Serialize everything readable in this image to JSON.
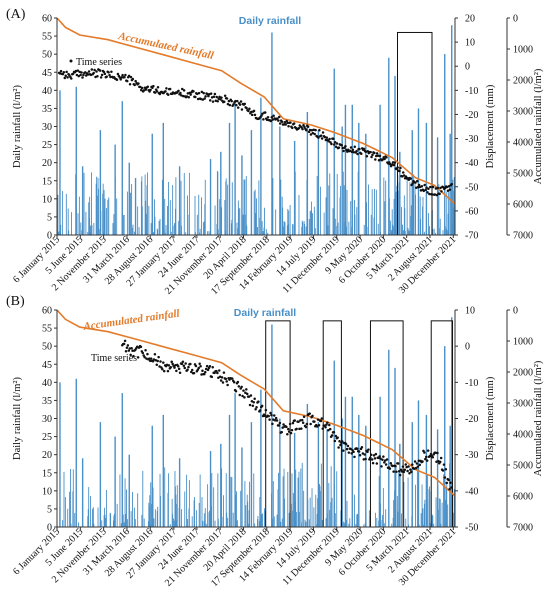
{
  "colors": {
    "rain": "#4a90c8",
    "accumulated": "#e37b2a",
    "points": "#111111",
    "axis": "#333333"
  },
  "chart_data": [
    {
      "type": "bar",
      "panel": "(A)",
      "annotations": {
        "rain": "Daily rainfall",
        "accumulated": "Accumulated rainfall",
        "series": "Time series"
      },
      "ylabel_left": "Daily rainfall (l/m²)",
      "ylabel_right1": "Displacement (mm)",
      "ylabel_right2": "Accumulated rainfall (l/m²)",
      "ylim_left": [
        0,
        60
      ],
      "ylim_right1": [
        -70,
        20
      ],
      "ylim_right2": [
        7000,
        0
      ],
      "left_ticks": [
        0,
        5,
        10,
        15,
        20,
        25,
        30,
        35,
        40,
        45,
        50,
        55,
        60
      ],
      "right1_ticks": [
        -70,
        -60,
        -50,
        -40,
        -30,
        -20,
        -10,
        0,
        10,
        20
      ],
      "right2_ticks": [
        0,
        1000,
        2000,
        3000,
        4000,
        5000,
        6000,
        7000
      ],
      "x_start": "2015-01-06",
      "x_end": "2022-01-10",
      "x_ticks": [
        "6 January 2015",
        "5 June 2015",
        "2 November 2015",
        "31 March 2016",
        "28 August 2016",
        "27 January 2017",
        "24 June 2017",
        "21 November 2017",
        "20 April 2018",
        "17 September 2018",
        "14 February 2019",
        "14 July 2019",
        "11 December 2019",
        "9 May 2020",
        "6 October 2020",
        "5 March 2021",
        "2 August 2021",
        "30 December 2021"
      ],
      "x_tick_dates": [
        "2015-01-06",
        "2015-06-05",
        "2015-11-02",
        "2016-03-31",
        "2016-08-28",
        "2017-01-27",
        "2017-06-24",
        "2017-11-21",
        "2018-04-20",
        "2018-09-17",
        "2019-02-14",
        "2019-07-14",
        "2019-12-11",
        "2020-05-09",
        "2020-10-06",
        "2021-03-05",
        "2021-08-02",
        "2021-12-30"
      ],
      "rain_peaks": [
        {
          "date": "2015-01-25",
          "value": 40
        },
        {
          "date": "2015-05-10",
          "value": 41
        },
        {
          "date": "2015-06-20",
          "value": 19
        },
        {
          "date": "2015-10-12",
          "value": 29
        },
        {
          "date": "2016-01-15",
          "value": 25
        },
        {
          "date": "2016-03-01",
          "value": 37
        },
        {
          "date": "2016-04-15",
          "value": 20
        },
        {
          "date": "2016-09-10",
          "value": 28
        },
        {
          "date": "2016-11-20",
          "value": 31
        },
        {
          "date": "2017-03-05",
          "value": 19
        },
        {
          "date": "2017-09-20",
          "value": 21
        },
        {
          "date": "2017-11-25",
          "value": 23
        },
        {
          "date": "2018-01-20",
          "value": 31
        },
        {
          "date": "2018-02-25",
          "value": 37
        },
        {
          "date": "2018-04-10",
          "value": 22
        },
        {
          "date": "2018-06-10",
          "value": 29
        },
        {
          "date": "2018-08-10",
          "value": 38
        },
        {
          "date": "2018-10-20",
          "value": 56
        },
        {
          "date": "2018-12-10",
          "value": 30
        },
        {
          "date": "2019-03-15",
          "value": 26
        },
        {
          "date": "2019-06-05",
          "value": 34
        },
        {
          "date": "2019-08-15",
          "value": 29
        },
        {
          "date": "2019-10-10",
          "value": 27
        },
        {
          "date": "2019-11-25",
          "value": 46
        },
        {
          "date": "2020-01-15",
          "value": 30
        },
        {
          "date": "2020-02-05",
          "value": 36
        },
        {
          "date": "2020-03-20",
          "value": 36
        },
        {
          "date": "2020-05-01",
          "value": 31
        },
        {
          "date": "2020-06-15",
          "value": 28
        },
        {
          "date": "2020-09-15",
          "value": 36
        },
        {
          "date": "2020-11-10",
          "value": 49
        },
        {
          "date": "2020-12-20",
          "value": 44
        },
        {
          "date": "2021-01-20",
          "value": 23
        },
        {
          "date": "2021-04-10",
          "value": 29
        },
        {
          "date": "2021-05-20",
          "value": 35
        },
        {
          "date": "2021-07-10",
          "value": 31
        },
        {
          "date": "2021-09-20",
          "value": 27
        },
        {
          "date": "2021-11-05",
          "value": 50
        },
        {
          "date": "2021-12-10",
          "value": 28
        },
        {
          "date": "2021-12-20",
          "value": 58
        }
      ],
      "accumulated": [
        {
          "date": "2015-01-06",
          "value": 0
        },
        {
          "date": "2015-03-01",
          "value": 300
        },
        {
          "date": "2015-06-01",
          "value": 550
        },
        {
          "date": "2015-12-01",
          "value": 700
        },
        {
          "date": "2016-06-01",
          "value": 950
        },
        {
          "date": "2016-12-01",
          "value": 1200
        },
        {
          "date": "2017-06-01",
          "value": 1450
        },
        {
          "date": "2017-12-01",
          "value": 1700
        },
        {
          "date": "2018-04-01",
          "value": 2100
        },
        {
          "date": "2018-09-01",
          "value": 2550
        },
        {
          "date": "2019-01-01",
          "value": 3250
        },
        {
          "date": "2019-07-01",
          "value": 3450
        },
        {
          "date": "2019-12-01",
          "value": 3700
        },
        {
          "date": "2020-06-01",
          "value": 4050
        },
        {
          "date": "2020-12-01",
          "value": 4500
        },
        {
          "date": "2021-05-01",
          "value": 5150
        },
        {
          "date": "2021-09-01",
          "value": 5400
        },
        {
          "date": "2022-01-10",
          "value": 6000
        }
      ],
      "displacement": [
        {
          "date": "2015-01-20",
          "value": -2
        },
        {
          "date": "2015-03-20",
          "value": -4
        },
        {
          "date": "2015-06-20",
          "value": -3
        },
        {
          "date": "2015-10-01",
          "value": -3
        },
        {
          "date": "2016-01-01",
          "value": -4
        },
        {
          "date": "2016-04-01",
          "value": -5
        },
        {
          "date": "2016-07-01",
          "value": -9
        },
        {
          "date": "2016-10-01",
          "value": -10
        },
        {
          "date": "2017-01-01",
          "value": -11
        },
        {
          "date": "2017-04-01",
          "value": -11
        },
        {
          "date": "2017-07-01",
          "value": -12
        },
        {
          "date": "2017-10-01",
          "value": -13
        },
        {
          "date": "2018-01-01",
          "value": -14
        },
        {
          "date": "2018-04-01",
          "value": -16
        },
        {
          "date": "2018-07-01",
          "value": -20
        },
        {
          "date": "2018-10-01",
          "value": -21
        },
        {
          "date": "2019-01-01",
          "value": -23
        },
        {
          "date": "2019-04-01",
          "value": -25
        },
        {
          "date": "2019-07-01",
          "value": -27
        },
        {
          "date": "2019-10-01",
          "value": -29
        },
        {
          "date": "2020-01-01",
          "value": -33
        },
        {
          "date": "2020-04-01",
          "value": -35
        },
        {
          "date": "2020-07-01",
          "value": -36
        },
        {
          "date": "2020-10-01",
          "value": -38
        },
        {
          "date": "2021-01-01",
          "value": -42
        },
        {
          "date": "2021-04-01",
          "value": -48
        },
        {
          "date": "2021-07-01",
          "value": -51
        },
        {
          "date": "2021-10-01",
          "value": -52
        },
        {
          "date": "2021-12-20",
          "value": -50
        }
      ],
      "highlight_boxes": [
        {
          "start": "2021-01-05",
          "end": "2021-08-15",
          "top_y": 56,
          "bottom_y": 0
        }
      ]
    },
    {
      "type": "bar",
      "panel": "(B)",
      "annotations": {
        "rain": "Daily rainfall",
        "accumulated": "Accumulated rainfall",
        "series": "Time series"
      },
      "ylabel_left": "Daily rainfall (l/m²)",
      "ylabel_right1": "Displacement (mm)",
      "ylabel_right2": "Accumulated rainfall (l/m²)",
      "ylim_left": [
        0,
        60
      ],
      "ylim_right1": [
        -50,
        10
      ],
      "ylim_right2": [
        7000,
        0
      ],
      "left_ticks": [
        0,
        5,
        10,
        15,
        20,
        25,
        30,
        35,
        40,
        45,
        50,
        55,
        60
      ],
      "right1_ticks": [
        -50,
        -40,
        -30,
        -20,
        -10,
        0,
        10
      ],
      "right2_ticks": [
        0,
        1000,
        2000,
        3000,
        4000,
        5000,
        6000,
        7000
      ],
      "x_start": "2015-01-06",
      "x_end": "2022-01-10",
      "x_ticks": [
        "6 January 2015",
        "5 June 2015",
        "2 November 2015",
        "31 March 2016",
        "28 August 2016",
        "27 January 2017",
        "24 June 2017",
        "21 November 2017",
        "20 April 2018",
        "17 September 2018",
        "14 February 2019",
        "14 July 2019",
        "11 December 2019",
        "9 May 2020",
        "6 October 2020",
        "5 March 2021",
        "2 August 2021",
        "30 December 2021"
      ],
      "x_tick_dates": [
        "2015-01-06",
        "2015-06-05",
        "2015-11-02",
        "2016-03-31",
        "2016-08-28",
        "2017-01-27",
        "2017-06-24",
        "2017-11-21",
        "2018-04-20",
        "2018-09-17",
        "2019-02-14",
        "2019-07-14",
        "2019-12-11",
        "2020-05-09",
        "2020-10-06",
        "2021-03-05",
        "2021-08-02",
        "2021-12-30"
      ],
      "rain_peaks": [
        {
          "date": "2015-01-25",
          "value": 40
        },
        {
          "date": "2015-05-10",
          "value": 41
        },
        {
          "date": "2015-06-20",
          "value": 19
        },
        {
          "date": "2015-10-12",
          "value": 29
        },
        {
          "date": "2016-01-15",
          "value": 25
        },
        {
          "date": "2016-03-01",
          "value": 37
        },
        {
          "date": "2016-04-15",
          "value": 20
        },
        {
          "date": "2016-09-10",
          "value": 28
        },
        {
          "date": "2016-11-20",
          "value": 31
        },
        {
          "date": "2017-03-05",
          "value": 19
        },
        {
          "date": "2017-09-20",
          "value": 21
        },
        {
          "date": "2017-11-25",
          "value": 23
        },
        {
          "date": "2018-01-20",
          "value": 31
        },
        {
          "date": "2018-02-25",
          "value": 37
        },
        {
          "date": "2018-04-10",
          "value": 22
        },
        {
          "date": "2018-06-10",
          "value": 29
        },
        {
          "date": "2018-08-10",
          "value": 38
        },
        {
          "date": "2018-10-20",
          "value": 56
        },
        {
          "date": "2018-12-10",
          "value": 30
        },
        {
          "date": "2019-03-15",
          "value": 26
        },
        {
          "date": "2019-06-05",
          "value": 34
        },
        {
          "date": "2019-08-15",
          "value": 29
        },
        {
          "date": "2019-10-10",
          "value": 27
        },
        {
          "date": "2019-11-25",
          "value": 46
        },
        {
          "date": "2020-01-15",
          "value": 30
        },
        {
          "date": "2020-02-05",
          "value": 36
        },
        {
          "date": "2020-03-20",
          "value": 36
        },
        {
          "date": "2020-05-01",
          "value": 31
        },
        {
          "date": "2020-06-15",
          "value": 28
        },
        {
          "date": "2020-09-15",
          "value": 36
        },
        {
          "date": "2020-11-10",
          "value": 49
        },
        {
          "date": "2020-12-20",
          "value": 44
        },
        {
          "date": "2021-01-20",
          "value": 23
        },
        {
          "date": "2021-04-10",
          "value": 29
        },
        {
          "date": "2021-05-20",
          "value": 35
        },
        {
          "date": "2021-07-10",
          "value": 31
        },
        {
          "date": "2021-09-20",
          "value": 27
        },
        {
          "date": "2021-11-05",
          "value": 50
        },
        {
          "date": "2021-12-10",
          "value": 28
        },
        {
          "date": "2021-12-20",
          "value": 58
        }
      ],
      "accumulated": [
        {
          "date": "2015-01-06",
          "value": 0
        },
        {
          "date": "2015-03-01",
          "value": 300
        },
        {
          "date": "2015-06-01",
          "value": 550
        },
        {
          "date": "2015-12-01",
          "value": 700
        },
        {
          "date": "2016-06-01",
          "value": 950
        },
        {
          "date": "2016-12-01",
          "value": 1200
        },
        {
          "date": "2017-06-01",
          "value": 1450
        },
        {
          "date": "2017-12-01",
          "value": 1700
        },
        {
          "date": "2018-04-01",
          "value": 2100
        },
        {
          "date": "2018-09-01",
          "value": 2550
        },
        {
          "date": "2019-01-01",
          "value": 3250
        },
        {
          "date": "2019-07-01",
          "value": 3450
        },
        {
          "date": "2019-12-01",
          "value": 3700
        },
        {
          "date": "2020-06-01",
          "value": 4050
        },
        {
          "date": "2020-12-01",
          "value": 4500
        },
        {
          "date": "2021-05-01",
          "value": 5150
        },
        {
          "date": "2021-09-01",
          "value": 5400
        },
        {
          "date": "2022-01-10",
          "value": 6000
        }
      ],
      "displacement": [
        {
          "date": "2016-03-01",
          "value": 1
        },
        {
          "date": "2016-05-01",
          "value": -1
        },
        {
          "date": "2016-08-01",
          "value": -2
        },
        {
          "date": "2016-11-01",
          "value": -5
        },
        {
          "date": "2017-01-01",
          "value": -6
        },
        {
          "date": "2017-04-01",
          "value": -6
        },
        {
          "date": "2017-07-01",
          "value": -6
        },
        {
          "date": "2017-10-01",
          "value": -7
        },
        {
          "date": "2018-01-01",
          "value": -9
        },
        {
          "date": "2018-04-01",
          "value": -12
        },
        {
          "date": "2018-07-01",
          "value": -16
        },
        {
          "date": "2018-10-01",
          "value": -19
        },
        {
          "date": "2019-01-01",
          "value": -23
        },
        {
          "date": "2019-04-01",
          "value": -22
        },
        {
          "date": "2019-07-01",
          "value": -20
        },
        {
          "date": "2019-10-01",
          "value": -22
        },
        {
          "date": "2020-01-01",
          "value": -27
        },
        {
          "date": "2020-04-01",
          "value": -29
        },
        {
          "date": "2020-07-01",
          "value": -30
        },
        {
          "date": "2020-10-01",
          "value": -32
        },
        {
          "date": "2021-01-01",
          "value": -34
        },
        {
          "date": "2021-04-01",
          "value": -34
        },
        {
          "date": "2021-07-01",
          "value": -30
        },
        {
          "date": "2021-10-01",
          "value": -31
        },
        {
          "date": "2021-12-20",
          "value": -40
        }
      ],
      "highlight_boxes": [
        {
          "start": "2018-09-10",
          "end": "2019-02-14",
          "top_y": 57,
          "bottom_y": 0
        },
        {
          "start": "2019-09-15",
          "end": "2020-01-10",
          "top_y": 57,
          "bottom_y": 0
        },
        {
          "start": "2020-07-15",
          "end": "2021-02-10",
          "top_y": 57,
          "bottom_y": 0
        },
        {
          "start": "2021-08-10",
          "end": "2021-12-25",
          "top_y": 57,
          "bottom_y": 0
        }
      ]
    }
  ]
}
